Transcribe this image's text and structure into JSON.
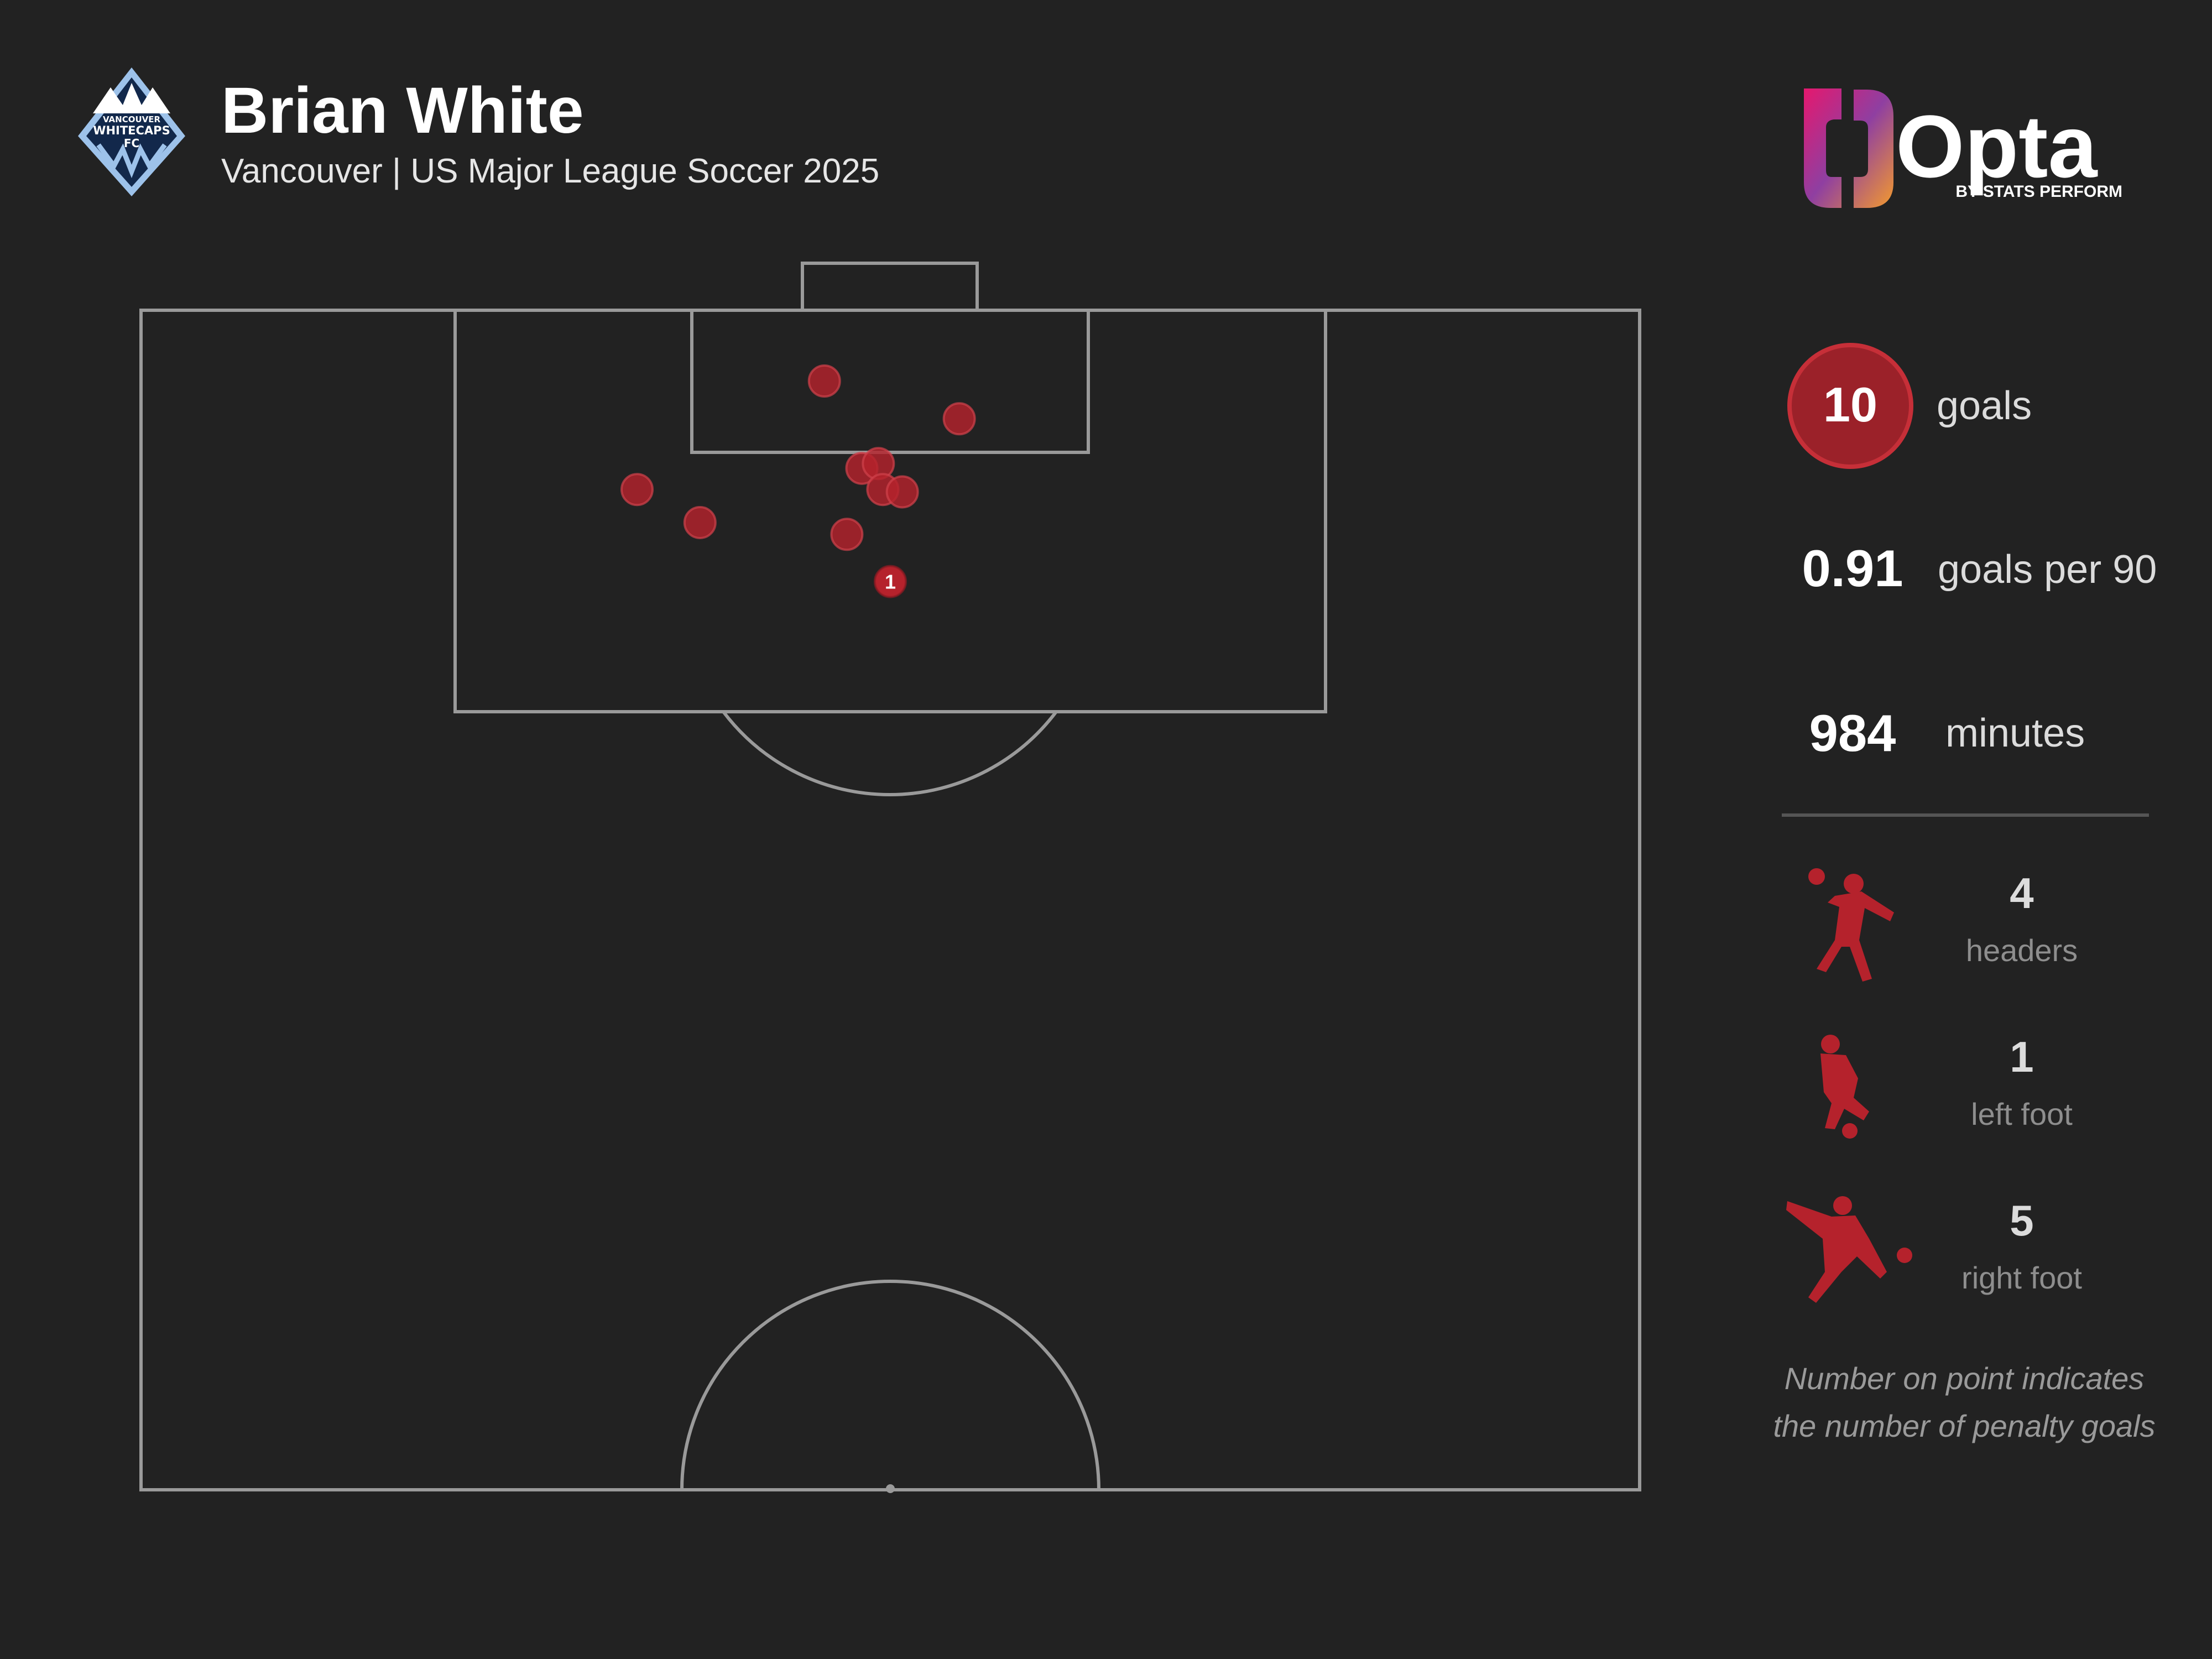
{
  "header": {
    "player_name": "Brian White",
    "subtitle": "Vancouver | US Major League Soccer 2025",
    "club_badge": {
      "icon": "vancouver-whitecaps-badge",
      "text_lines": [
        "VANCOUVER",
        "WHITECAPS",
        "FC"
      ],
      "colors": {
        "navy": "#12284B",
        "sky": "#9DC2EA",
        "white": "#FFFFFF"
      }
    }
  },
  "branding": {
    "logo_text": "Opta",
    "logo_subtext": "BY STATS PERFORM",
    "logo_gradient": [
      "#E5186E",
      "#8F3FA1",
      "#F39A2E"
    ]
  },
  "stats": {
    "goals": {
      "value": "10",
      "label": "goals"
    },
    "goals_per_90": {
      "value": "0.91",
      "label": "goals per 90"
    },
    "minutes": {
      "value": "984",
      "label": "minutes"
    },
    "breakdown": [
      {
        "icon": "header-player-icon",
        "value": "4",
        "label": "headers"
      },
      {
        "icon": "left-foot-player-icon",
        "value": "1",
        "label": "left foot"
      },
      {
        "icon": "right-foot-player-icon",
        "value": "5",
        "label": "right foot"
      }
    ]
  },
  "footnote": {
    "line1": "Number on point indicates",
    "line2": "the number of penalty goals"
  },
  "colors": {
    "background": "#222222",
    "pitch_lines": "#9A9A9A",
    "goal_marker": "#B5222C",
    "goal_badge": "#9B2129",
    "stat_label": "#DCDCDC",
    "breakdown_label": "#8E8E8E",
    "divider": "#555555"
  },
  "chart_data": {
    "type": "scatter",
    "title": "",
    "xlabel": "",
    "ylabel": "",
    "description_units": "half pitch, x = 0..100 from left touchline to right touchline, y = 0..100 from halfway line to goal line",
    "xlim": [
      0,
      100
    ],
    "ylim": [
      0,
      100
    ],
    "grid": false,
    "series": [
      {
        "name": "",
        "points": [
          {
            "x": 45.6,
            "y": 94.0,
            "label": ""
          },
          {
            "x": 54.6,
            "y": 90.8,
            "label": ""
          },
          {
            "x": 33.1,
            "y": 84.8,
            "label": ""
          },
          {
            "x": 37.3,
            "y": 82.0,
            "label": ""
          },
          {
            "x": 48.1,
            "y": 86.6,
            "label": ""
          },
          {
            "x": 49.2,
            "y": 87.0,
            "label": ""
          },
          {
            "x": 49.5,
            "y": 84.8,
            "label": ""
          },
          {
            "x": 50.8,
            "y": 84.6,
            "label": ""
          },
          {
            "x": 47.1,
            "y": 81.0,
            "label": ""
          },
          {
            "x": 50.0,
            "y": 77.0,
            "label": "1"
          }
        ]
      }
    ]
  }
}
